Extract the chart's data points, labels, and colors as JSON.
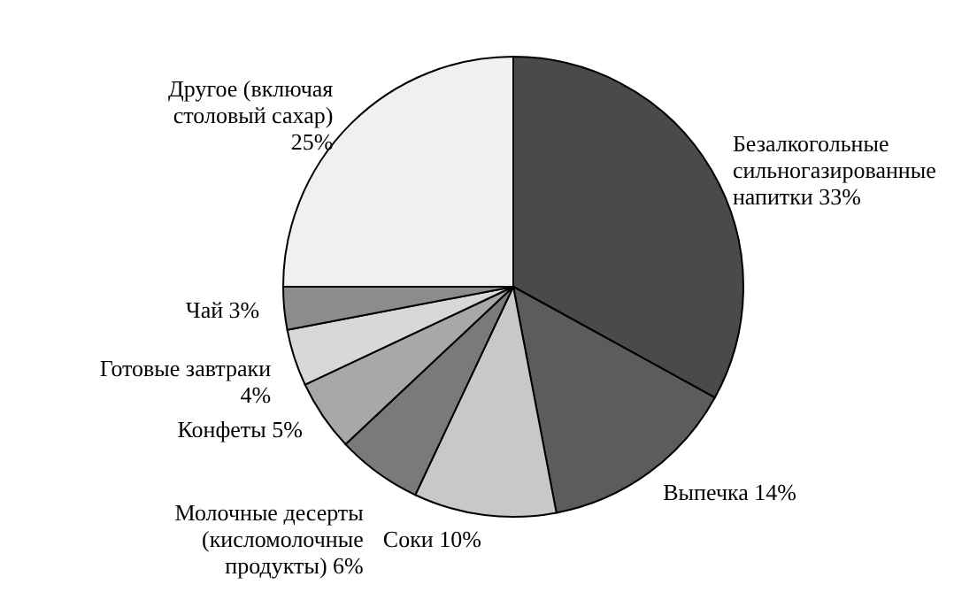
{
  "chart_data": {
    "type": "pie",
    "categories": [
      "Безалкогольные сильногазированные напитки",
      "Выпечка",
      "Соки",
      "Молочные десерты (кисломолочные продукты)",
      "Конфеты",
      "Готовые завтраки",
      "Чай",
      "Другое (включая столовый сахар)"
    ],
    "values": [
      33,
      14,
      10,
      6,
      5,
      4,
      3,
      25
    ],
    "value_labels": [
      "33%",
      "14%",
      "10%",
      "6%",
      "5%",
      "4%",
      "3%",
      "25%"
    ],
    "colors": [
      "#4a4a4a",
      "#5c5c5c",
      "#c8c8c8",
      "#7a7a7a",
      "#a8a8a8",
      "#d8d8d8",
      "#8c8c8c",
      "#f0f0f0"
    ]
  }
}
